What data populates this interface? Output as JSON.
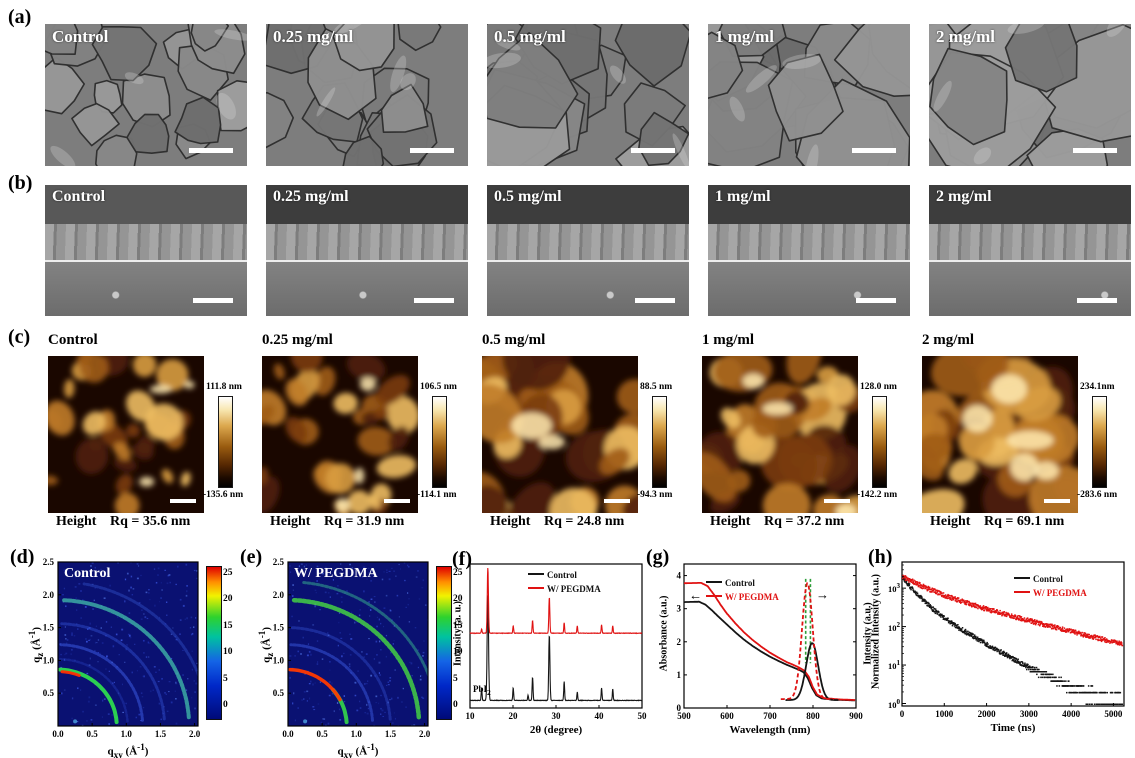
{
  "panels": {
    "a": {
      "label": "(a)"
    },
    "b": {
      "label": "(b)"
    },
    "c": {
      "label": "(c)"
    },
    "d": {
      "label": "(d)"
    },
    "e": {
      "label": "(e)"
    },
    "f": {
      "label": "(f)"
    },
    "g": {
      "label": "(g)"
    },
    "h": {
      "label": "(h)"
    }
  },
  "row_a": {
    "labels": [
      "Control",
      "0.25 mg/ml",
      "0.5 mg/ml",
      "1 mg/ml",
      "2 mg/ml"
    ]
  },
  "row_b": {
    "labels": [
      "Control",
      "0.25 mg/ml",
      "0.5 mg/ml",
      "1 mg/ml",
      "2 mg/ml"
    ]
  },
  "row_c": {
    "items": [
      {
        "title": "Control",
        "scale_max": "111.8 nm",
        "scale_min": "-135.6 nm",
        "height_label": "Height",
        "rq": "Rq = 35.6 nm"
      },
      {
        "title": "0.25 mg/ml",
        "scale_max": "106.5 nm",
        "scale_min": "-114.1 nm",
        "height_label": "Height",
        "rq": "Rq = 31.9 nm"
      },
      {
        "title": "0.5 mg/ml",
        "scale_max": "88.5 nm",
        "scale_min": "-94.3 nm",
        "height_label": "Height",
        "rq": "Rq = 24.8 nm"
      },
      {
        "title": "1 mg/ml",
        "scale_max": "128.0 nm",
        "scale_min": "-142.2 nm",
        "height_label": "Height",
        "rq": "Rq = 37.2 nm"
      },
      {
        "title": "2 mg/ml",
        "scale_max": "234.1nm",
        "scale_min": "-283.6 nm",
        "height_label": "Height",
        "rq": "Rq = 69.1 nm"
      }
    ]
  },
  "chart_data": [
    {
      "id": "d",
      "type": "heatmap",
      "title": "Control",
      "xlabel": "q_xy (Å^-1)",
      "ylabel": "q_z (Å^-1)",
      "xlim": [
        0,
        2.05
      ],
      "ylim": [
        0,
        2.5
      ],
      "xticks": [
        0.0,
        0.5,
        1.0,
        1.5,
        2.0
      ],
      "yticks": [
        0.5,
        1.0,
        1.5,
        2.0,
        2.5
      ],
      "colorbar_ticks": [
        25,
        20,
        15,
        10,
        5,
        0
      ],
      "rings": [
        {
          "q": 0.86,
          "color": "#2fe04e",
          "width": 4,
          "opacity": 0.92,
          "a1": 4,
          "a2": 88,
          "speckle": false
        },
        {
          "q": 0.83,
          "color": "#ff2e00",
          "width": 3,
          "opacity": 0.95,
          "a1": 68,
          "a2": 86,
          "speckle": false
        },
        {
          "q": 1.02,
          "color": "#2a46c8",
          "width": 2.5,
          "opacity": 0.35,
          "a1": 4,
          "a2": 88,
          "speckle": true
        },
        {
          "q": 1.24,
          "color": "#3a5ae0",
          "width": 3,
          "opacity": 0.55,
          "a1": 4,
          "a2": 88,
          "speckle": true
        },
        {
          "q": 1.56,
          "color": "#3452d4",
          "width": 3,
          "opacity": 0.45,
          "a1": 4,
          "a2": 88,
          "speckle": true
        },
        {
          "q": 1.92,
          "color": "#3fb4a8",
          "width": 4,
          "opacity": 0.8,
          "a1": 4,
          "a2": 88,
          "speckle": true
        },
        {
          "q": 2.2,
          "color": "#3050c8",
          "width": 3,
          "opacity": 0.45,
          "a1": 8,
          "a2": 80,
          "speckle": true
        }
      ]
    },
    {
      "id": "e",
      "type": "heatmap",
      "title": "W/ PEGDMA",
      "xlabel": "q_xy (Å^-1)",
      "ylabel": "q_z (Å^-1)",
      "xlim": [
        0,
        2.05
      ],
      "ylim": [
        0,
        2.5
      ],
      "xticks": [
        0.0,
        0.5,
        1.0,
        1.5,
        2.0
      ],
      "yticks": [
        0.5,
        1.0,
        1.5,
        2.0,
        2.5
      ],
      "colorbar_ticks": [
        25,
        20,
        15,
        10,
        5,
        0
      ],
      "rings": [
        {
          "q": 0.86,
          "color": "#35d84a",
          "width": 4,
          "opacity": 0.9,
          "a1": 4,
          "a2": 40,
          "speckle": false
        },
        {
          "q": 0.86,
          "color": "#ff3a00",
          "width": 3.5,
          "opacity": 0.95,
          "a1": 28,
          "a2": 88,
          "speckle": false
        },
        {
          "q": 1.24,
          "color": "#3a5ae0",
          "width": 3,
          "opacity": 0.5,
          "a1": 4,
          "a2": 88,
          "speckle": true
        },
        {
          "q": 1.5,
          "color": "#3452d4",
          "width": 3,
          "opacity": 0.4,
          "a1": 4,
          "a2": 88,
          "speckle": true
        },
        {
          "q": 1.92,
          "color": "#44d044",
          "width": 4.5,
          "opacity": 0.85,
          "a1": 4,
          "a2": 88,
          "speckle": true
        },
        {
          "q": 2.2,
          "color": "#38b890",
          "width": 3,
          "opacity": 0.5,
          "a1": 8,
          "a2": 85,
          "speckle": true
        }
      ]
    },
    {
      "id": "f",
      "type": "line",
      "xlabel": "2θ (degree)",
      "ylabel": "Intensity (a. u.)",
      "xlim": [
        10,
        50
      ],
      "xticks": [
        10,
        20,
        30,
        40,
        50
      ],
      "legend": [
        "Control",
        "W/ PEGDMA"
      ],
      "annotation": "PbI_2",
      "ymax": 1.37,
      "series": [
        {
          "name": "Control",
          "color": "#151515",
          "base": 0.07,
          "peaks": [
            [
              12.7,
              0.12
            ],
            [
              14.15,
              1.0
            ],
            [
              20.05,
              0.12
            ],
            [
              23.5,
              0.05
            ],
            [
              24.55,
              0.22
            ],
            [
              28.45,
              0.62
            ],
            [
              31.9,
              0.18
            ],
            [
              34.95,
              0.08
            ],
            [
              40.6,
              0.12
            ],
            [
              43.2,
              0.11
            ]
          ]
        },
        {
          "name": "W/ PEGDMA",
          "color": "#e01212",
          "base": 0.71,
          "peaks": [
            [
              12.7,
              0.04
            ],
            [
              14.15,
              0.62
            ],
            [
              20.05,
              0.07
            ],
            [
              24.55,
              0.12
            ],
            [
              28.45,
              0.34
            ],
            [
              31.9,
              0.1
            ],
            [
              34.95,
              0.07
            ],
            [
              40.6,
              0.08
            ],
            [
              43.2,
              0.07
            ]
          ]
        }
      ]
    },
    {
      "id": "g",
      "type": "line",
      "xlabel": "Wavelength (nm)",
      "ylabel": "Absorbance (a.u.)",
      "ylabel_right": "Intensity (a.u.)",
      "xlim": [
        500,
        900
      ],
      "ylim": [
        0,
        4.35
      ],
      "xticks": [
        500,
        600,
        700,
        800,
        900
      ],
      "yticks": [
        0,
        1,
        2,
        3,
        4
      ],
      "legend": [
        "Control",
        "W/ PEGDMA"
      ],
      "abs_series": [
        {
          "name": "Control",
          "color": "#151515",
          "points": [
            [
              500,
              3.2
            ],
            [
              535,
              3.21
            ],
            [
              550,
              3.12
            ],
            [
              565,
              2.95
            ],
            [
              580,
              2.76
            ],
            [
              600,
              2.52
            ],
            [
              620,
              2.28
            ],
            [
              640,
              2.06
            ],
            [
              660,
              1.87
            ],
            [
              680,
              1.7
            ],
            [
              700,
              1.55
            ],
            [
              720,
              1.42
            ],
            [
              740,
              1.3
            ],
            [
              755,
              1.22
            ],
            [
              768,
              1.15
            ],
            [
              778,
              1.08
            ],
            [
              788,
              0.9
            ],
            [
              798,
              0.6
            ],
            [
              808,
              0.38
            ],
            [
              820,
              0.29
            ],
            [
              850,
              0.25
            ],
            [
              900,
              0.23
            ]
          ]
        },
        {
          "name": "W/ PEGDMA",
          "color": "#e01212",
          "points": [
            [
              500,
              3.77
            ],
            [
              540,
              3.78
            ],
            [
              555,
              3.68
            ],
            [
              570,
              3.42
            ],
            [
              585,
              3.12
            ],
            [
              600,
              2.85
            ],
            [
              620,
              2.55
            ],
            [
              640,
              2.28
            ],
            [
              660,
              2.05
            ],
            [
              680,
              1.85
            ],
            [
              700,
              1.67
            ],
            [
              720,
              1.52
            ],
            [
              740,
              1.38
            ],
            [
              755,
              1.3
            ],
            [
              768,
              1.22
            ],
            [
              780,
              1.13
            ],
            [
              790,
              0.95
            ],
            [
              800,
              0.62
            ],
            [
              810,
              0.4
            ],
            [
              825,
              0.3
            ],
            [
              860,
              0.26
            ],
            [
              900,
              0.24
            ]
          ]
        }
      ],
      "pl_series": [
        {
          "name": "Control",
          "color": "#151515",
          "center": 798,
          "sigma": 14,
          "height": 1.72,
          "base": 0.24,
          "dashed": false
        },
        {
          "name": "W/ PEGDMA",
          "color": "#e01212",
          "center": 787,
          "sigma": 12.5,
          "height": 3.5,
          "base": 0.27,
          "dashed": true
        }
      ],
      "guide_lines_nm": [
        783,
        794
      ],
      "guide_color": "#2e9e3a",
      "arrow_left_nm": 512,
      "arrow_left_val": 3.28,
      "arrow_right_nm": 822,
      "arrow_right_val": 3.3
    },
    {
      "id": "h",
      "type": "scatter",
      "xlabel": "Time (ns)",
      "ylabel": "Normalized Intensity (a.u.)",
      "xlim": [
        0,
        5250
      ],
      "xticks": [
        0,
        1000,
        2000,
        3000,
        4000,
        5000
      ],
      "ytick_labels": [
        "10^3",
        "10^2",
        "10^1",
        "10^0"
      ],
      "legend": [
        "Control",
        "W/ PEGDMA"
      ],
      "series": [
        {
          "name": "Control",
          "color": "#151515",
          "A1": 1400,
          "tau1": 250,
          "A2": 600,
          "tau2": 700,
          "bg": 0.8
        },
        {
          "name": "W/ PEGDMA",
          "color": "#e01212",
          "A1": 1100,
          "tau1": 500,
          "A2": 1000,
          "tau2": 1550,
          "bg": 1.2
        }
      ]
    }
  ]
}
